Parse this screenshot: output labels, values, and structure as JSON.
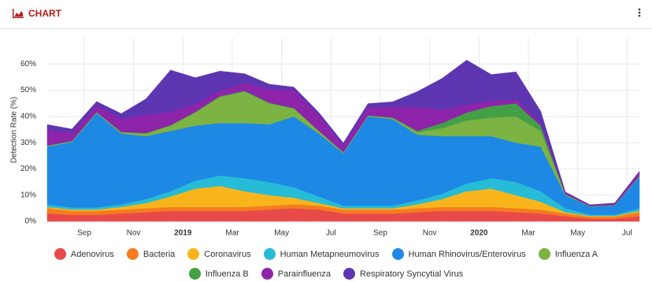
{
  "header": {
    "title": "CHART"
  },
  "chart_data": {
    "type": "stacked-area",
    "y_label": "Detection Rate (%)",
    "x": [
      0.5,
      1.5,
      2.5,
      3.5,
      4.5,
      5.5,
      6.5,
      7.5,
      8.5,
      9.5,
      10.5,
      11.5,
      12.5,
      13.5,
      14.5,
      15.5,
      16.5,
      17.5,
      18.5,
      19.5,
      20.5,
      21.5,
      22.5,
      23.5,
      24.5
    ],
    "xlim": [
      0.5,
      24.5
    ],
    "xticks": [
      {
        "value": 2,
        "label": "Sep"
      },
      {
        "value": 4,
        "label": "Nov"
      },
      {
        "value": 6,
        "label": "2019"
      },
      {
        "value": 8,
        "label": "Mar"
      },
      {
        "value": 10,
        "label": "May"
      },
      {
        "value": 12,
        "label": "Jul"
      },
      {
        "value": 14,
        "label": "Sep"
      },
      {
        "value": 16,
        "label": "Nov"
      },
      {
        "value": 18,
        "label": "2020"
      },
      {
        "value": 20,
        "label": "Mar"
      },
      {
        "value": 22,
        "label": "May"
      },
      {
        "value": 24,
        "label": "Jul"
      }
    ],
    "ylim": [
      0,
      70
    ],
    "yticks": [
      {
        "value": 0,
        "label": "0%"
      },
      {
        "value": 10,
        "label": "10%"
      },
      {
        "value": 20,
        "label": "20%"
      },
      {
        "value": 30,
        "label": "30%"
      },
      {
        "value": 40,
        "label": "40%"
      },
      {
        "value": 50,
        "label": "50%"
      },
      {
        "value": 60,
        "label": "60%"
      }
    ],
    "grid": true,
    "series": [
      {
        "name": "Adenovirus",
        "color": "#e84a4a",
        "values": [
          3,
          2.5,
          2.5,
          3,
          3.5,
          4,
          4,
          4,
          4,
          4.5,
          5,
          4.5,
          3,
          3,
          3,
          3.5,
          4,
          4,
          4,
          3.5,
          3,
          2,
          1,
          1,
          2
        ]
      },
      {
        "name": "Bacteria",
        "color": "#f57c1f",
        "values": [
          2,
          1.5,
          1.5,
          1.5,
          1.5,
          1.5,
          1.5,
          1.5,
          1.5,
          1.5,
          1.5,
          1.5,
          1.5,
          1.5,
          1.5,
          1.5,
          1.5,
          1.5,
          1.5,
          1.5,
          1.5,
          1,
          0.8,
          0.8,
          1.5
        ]
      },
      {
        "name": "Coronavirus",
        "color": "#f7b51b",
        "values": [
          0.5,
          0.5,
          0.5,
          1,
          2,
          4,
          7,
          8,
          6,
          4,
          2.5,
          1,
          0.5,
          0.5,
          0.5,
          1.5,
          3,
          6,
          7,
          5,
          3,
          0.5,
          0.3,
          0.3,
          0.5
        ]
      },
      {
        "name": "Human Metapneumovirus",
        "color": "#26bcd7",
        "values": [
          1,
          0.8,
          0.8,
          1,
          1.5,
          2,
          3,
          4,
          5,
          5,
          4,
          2.5,
          1,
          1,
          1,
          1.5,
          2,
          3,
          4,
          5,
          4,
          1.5,
          0.5,
          0.5,
          1
        ]
      },
      {
        "name": "Human Rhinovirus/Enterovirus",
        "color": "#1e88e5",
        "values": [
          22,
          25,
          36,
          27,
          24,
          23,
          21,
          20,
          21,
          22,
          27,
          24,
          20,
          34,
          33,
          25,
          22,
          18,
          16,
          15,
          17,
          5,
          3,
          3.5,
          12
        ]
      },
      {
        "name": "Influenza A",
        "color": "#7cb342",
        "values": [
          0.3,
          0.3,
          0.3,
          0.5,
          1,
          2,
          5,
          10,
          12,
          8,
          3,
          1,
          0.3,
          0.3,
          0.5,
          1,
          3,
          6,
          7,
          10,
          6,
          0.3,
          0.1,
          0.1,
          0.3
        ]
      },
      {
        "name": "Influenza B",
        "color": "#43a047",
        "values": [
          0.1,
          0.1,
          0.1,
          0.1,
          0.2,
          0.2,
          0.3,
          0.3,
          0.3,
          0.3,
          0.2,
          0.1,
          0.1,
          0.1,
          0.1,
          0.5,
          2,
          3,
          4.5,
          5,
          2,
          0.1,
          0.1,
          0.1,
          0.1
        ]
      },
      {
        "name": "Parainfluenza",
        "color": "#8e24aa",
        "values": [
          6,
          3,
          2.5,
          5,
          7,
          5,
          3,
          2,
          3,
          5,
          7,
          6,
          2.5,
          3,
          4,
          9,
          5,
          3,
          2,
          1.5,
          1,
          0.5,
          0.3,
          0.5,
          1.5
        ]
      },
      {
        "name": "Respiratory Syncytial Virus",
        "color": "#5e35b1",
        "values": [
          2,
          1.5,
          1.5,
          2,
          6,
          16,
          10,
          7.5,
          3.5,
          2,
          1,
          1,
          1,
          1.5,
          2,
          6,
          12,
          17,
          10,
          10.5,
          4.5,
          0.3,
          0.2,
          0.2,
          0.2
        ]
      }
    ]
  }
}
